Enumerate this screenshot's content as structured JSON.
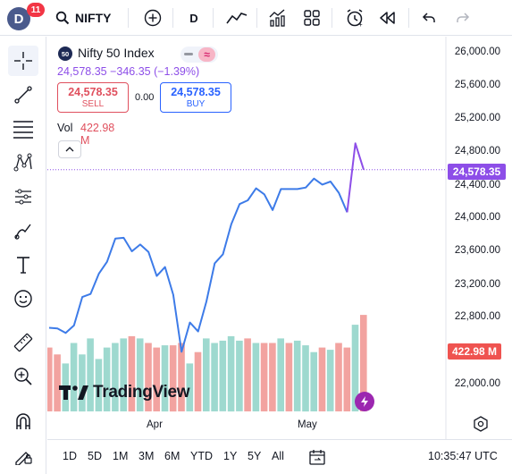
{
  "header": {
    "avatar_letter": "D",
    "notification_count": "11",
    "symbol": "NIFTY",
    "interval": "D",
    "icons": [
      "search-icon",
      "add-symbol-icon",
      "line-chart-type-icon",
      "indicators-icon",
      "layout-icon",
      "alert-icon",
      "replay-icon",
      "undo-icon",
      "redo-icon"
    ]
  },
  "left_tools": [
    "crosshair-icon",
    "trend-line-icon",
    "fib-tool-icon",
    "pattern-tool-icon",
    "forecast-tool-icon",
    "brush-icon",
    "text-icon",
    "emoji-icon",
    "ruler-icon",
    "zoom-in-icon",
    "magnet-icon",
    "lock-draw-icon"
  ],
  "legend": {
    "badge": "50",
    "title": "Nifty 50 Index",
    "change": "24,578.35  −346.35 (−1.39%)",
    "sell_price": "24,578.35",
    "sell_label": "SELL",
    "spread": "0.00",
    "buy_price": "24,578.35",
    "buy_label": "BUY",
    "vol_label": "Vol",
    "vol_value": "422.98 M"
  },
  "price_axis": {
    "ticks": [
      "26,000.00",
      "25,600.00",
      "25,200.00",
      "24,800.00",
      "24,400.00",
      "24,000.00",
      "23,600.00",
      "23,200.00",
      "22,800.00",
      "22,000.00"
    ],
    "last_price_label": "24,578.35",
    "volume_label": "422.98 M"
  },
  "time_axis": {
    "ticks": [
      "Apr",
      "May"
    ]
  },
  "watermark": "TradingView",
  "bottom": {
    "ranges": [
      "1D",
      "5D",
      "1M",
      "3M",
      "6M",
      "YTD",
      "1Y",
      "5Y",
      "All"
    ],
    "clock": "10:35:47 UTC"
  },
  "colors": {
    "line_blue": "#3d7be8",
    "line_purple": "#8d4ee8",
    "vol_up": "#9ed9cf",
    "vol_down": "#f2a3a0",
    "last_price_tag": "#8d4ee8",
    "volume_tag": "#ef5350"
  },
  "chart_data": {
    "type": "line",
    "x": [
      "Mar 13",
      "Mar 14",
      "Mar 17",
      "Mar 18",
      "Mar 19",
      "Mar 20",
      "Mar 21",
      "Mar 24",
      "Mar 25",
      "Mar 26",
      "Mar 27",
      "Mar 28",
      "Apr 1",
      "Apr 2",
      "Apr 3",
      "Apr 4",
      "Apr 7",
      "Apr 8",
      "Apr 9",
      "Apr 11",
      "Apr 15",
      "Apr 16",
      "Apr 17",
      "Apr 21",
      "Apr 22",
      "Apr 23",
      "Apr 24",
      "Apr 25",
      "Apr 28",
      "Apr 29",
      "Apr 30",
      "May 2",
      "May 5",
      "May 6",
      "May 7",
      "May 8",
      "May 9",
      "May 12",
      "May 13"
    ],
    "close": [
      22470,
      22460,
      22400,
      22500,
      22880,
      22920,
      23190,
      23350,
      23660,
      23670,
      23490,
      23580,
      23480,
      23160,
      23280,
      22910,
      22150,
      22540,
      22420,
      22820,
      23330,
      23450,
      23850,
      24120,
      24170,
      24330,
      24250,
      24040,
      24320,
      24320,
      24320,
      24340,
      24460,
      24380,
      24420,
      24270,
      24010,
      24930,
      24578.35
    ],
    "volume_m": [
      280,
      250,
      210,
      300,
      250,
      320,
      230,
      280,
      300,
      320,
      330,
      320,
      300,
      280,
      290,
      290,
      300,
      210,
      260,
      320,
      300,
      310,
      330,
      310,
      320,
      300,
      300,
      300,
      320,
      300,
      310,
      290,
      260,
      280,
      270,
      300,
      280,
      380,
      422.98
    ],
    "volume_up": [
      false,
      false,
      true,
      true,
      true,
      true,
      true,
      true,
      true,
      true,
      false,
      true,
      false,
      false,
      true,
      false,
      false,
      true,
      false,
      true,
      true,
      true,
      true,
      true,
      false,
      true,
      false,
      false,
      true,
      false,
      true,
      true,
      true,
      false,
      true,
      false,
      false,
      true,
      false
    ],
    "ylim": [
      21700,
      26150
    ]
  }
}
